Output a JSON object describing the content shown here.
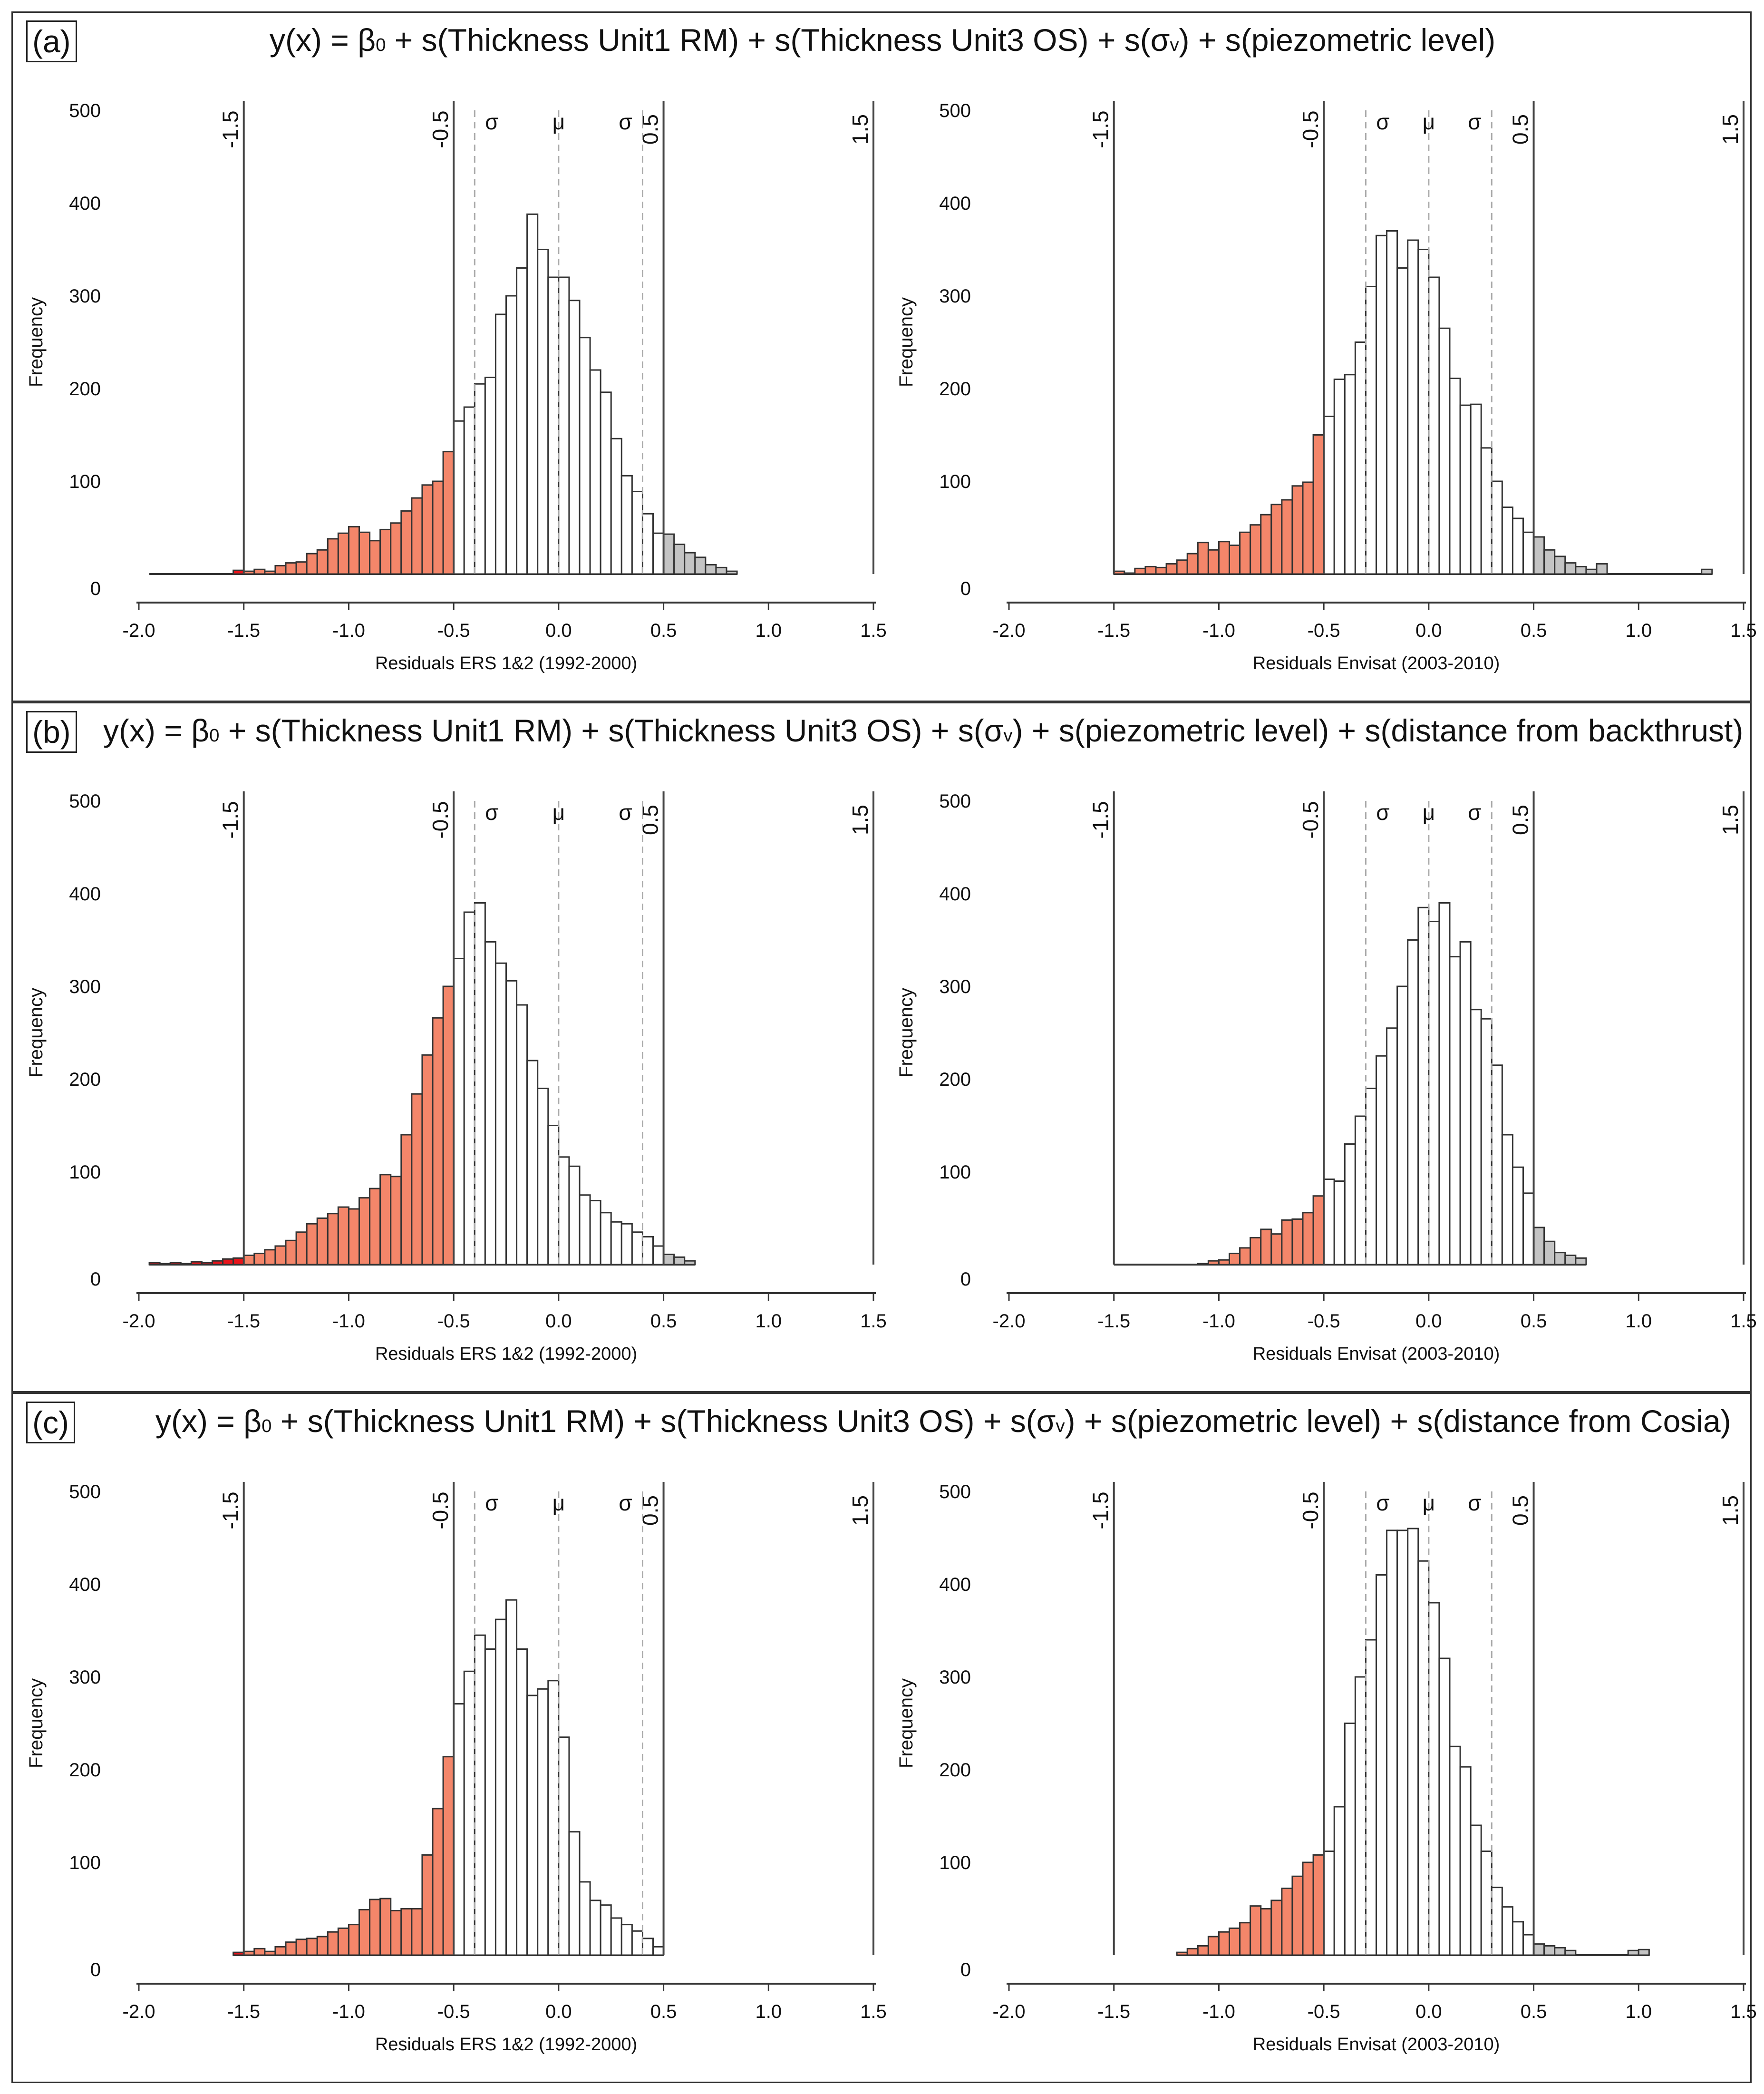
{
  "common": {
    "ylabel": "Frequency",
    "y_ticks": [
      0,
      100,
      200,
      300,
      400,
      500
    ],
    "x_ticks": [
      -2.0,
      -1.5,
      -1.0,
      -0.5,
      0.0,
      0.5,
      1.0,
      1.5
    ],
    "x_tick_labels": [
      "-2.0",
      "-1.5",
      "-1.0",
      "-0.5",
      "0.0",
      "0.5",
      "1.0",
      "1.5"
    ],
    "bin_width": 0.05,
    "sigma_symbol": "σ",
    "mu_symbol": "μ",
    "colors": {
      "red": "#e8141b",
      "orange": "#f4866a",
      "gray": "#c4c4c4",
      "white": "#ffffff",
      "line": "#444444",
      "dashed": "#aaaaaa"
    }
  },
  "panels": [
    {
      "label": "(a)",
      "title_parts": [
        "y(x) = β",
        "0",
        " + s(Thickness Unit1 RM) + s(Thickness Unit3 OS) + s(σ",
        "v",
        ") + s(piezometric level)"
      ]
    },
    {
      "label": "(b)",
      "title_parts": [
        "y(x) = β",
        "0",
        " + s(Thickness Unit1 RM) + s(Thickness Unit3 OS) + s(σ",
        "v",
        ") + s(piezometric level) + s(distance from backthrust)"
      ]
    },
    {
      "label": "(c)",
      "title_parts": [
        "y(x) = β",
        "0",
        " + s(Thickness Unit1 RM) + s(Thickness Unit3 OS) + s(σ",
        "v",
        ") + s(piezometric level) + s(distance from Cosia)"
      ]
    }
  ],
  "chart_data": [
    {
      "id": "a-ers",
      "type": "histogram",
      "xlabel": "Residuals ERS 1&2 (1992-2000)",
      "ylabel": "Frequency",
      "xlim": [
        -2.0,
        1.5
      ],
      "ylim": [
        0,
        500
      ],
      "bin_start": -1.95,
      "bin_width": 0.05,
      "mu": 0.0,
      "sigma": 0.4,
      "vlines": [
        {
          "x": -1.5,
          "label": "-1.5"
        },
        {
          "x": -0.5,
          "label": "-0.5"
        },
        {
          "x": 0.5,
          "label": "0.5"
        },
        {
          "x": 1.5,
          "label": "1.5"
        }
      ],
      "counts": [
        0,
        0,
        0,
        0,
        0,
        0,
        0,
        0,
        4,
        3,
        5,
        3,
        9,
        12,
        13,
        22,
        26,
        38,
        44,
        51,
        45,
        36,
        48,
        55,
        68,
        82,
        96,
        100,
        132,
        165,
        180,
        205,
        212,
        280,
        300,
        330,
        388,
        350,
        320,
        320,
        295,
        255,
        220,
        196,
        146,
        106,
        89,
        65,
        44,
        43,
        32,
        23,
        18,
        10,
        7,
        3
      ]
    },
    {
      "id": "a-envisat",
      "type": "histogram",
      "xlabel": "Residuals Envisat (2003-2010)",
      "ylabel": "Frequency",
      "xlim": [
        -2.0,
        1.5
      ],
      "ylim": [
        0,
        500
      ],
      "bin_start": -1.5,
      "bin_width": 0.05,
      "mu": 0.0,
      "sigma": 0.3,
      "vlines": [
        {
          "x": -1.5,
          "label": "-1.5"
        },
        {
          "x": -0.5,
          "label": "-0.5"
        },
        {
          "x": 0.5,
          "label": "0.5"
        },
        {
          "x": 1.5,
          "label": "1.5"
        }
      ],
      "counts": [
        3,
        1,
        6,
        8,
        7,
        11,
        15,
        22,
        34,
        26,
        35,
        31,
        45,
        53,
        64,
        75,
        80,
        95,
        99,
        150,
        170,
        210,
        215,
        250,
        310,
        365,
        370,
        330,
        360,
        350,
        320,
        265,
        211,
        182,
        183,
        136,
        100,
        72,
        60,
        45,
        40,
        26,
        19,
        12,
        8,
        5,
        11,
        0,
        0,
        0,
        0,
        0,
        0,
        0,
        0,
        0,
        5
      ]
    },
    {
      "id": "b-ers",
      "type": "histogram",
      "xlabel": "Residuals ERS 1&2 (1992-2000)",
      "ylabel": "Frequency",
      "xlim": [
        -2.0,
        1.5
      ],
      "ylim": [
        0,
        500
      ],
      "bin_start": -1.95,
      "bin_width": 0.05,
      "mu": 0.0,
      "sigma": 0.4,
      "vlines": [
        {
          "x": -1.5,
          "label": "-1.5"
        },
        {
          "x": -0.5,
          "label": "-0.5"
        },
        {
          "x": 0.5,
          "label": "0.5"
        },
        {
          "x": 1.5,
          "label": "1.5"
        }
      ],
      "counts": [
        2,
        1,
        2,
        1,
        3,
        2,
        4,
        6,
        7,
        10,
        12,
        16,
        20,
        26,
        35,
        44,
        50,
        55,
        62,
        60,
        72,
        82,
        97,
        95,
        140,
        184,
        226,
        266,
        300,
        330,
        380,
        390,
        348,
        325,
        306,
        280,
        220,
        190,
        150,
        116,
        106,
        75,
        69,
        56,
        46,
        44,
        35,
        30,
        20,
        11,
        8,
        4
      ]
    },
    {
      "id": "b-envisat",
      "type": "histogram",
      "xlabel": "Residuals Envisat (2003-2010)",
      "ylabel": "Frequency",
      "xlim": [
        -2.0,
        1.5
      ],
      "ylim": [
        0,
        500
      ],
      "bin_start": -1.5,
      "bin_width": 0.05,
      "mu": 0.0,
      "sigma": 0.3,
      "vlines": [
        {
          "x": -1.5,
          "label": "-1.5"
        },
        {
          "x": -0.5,
          "label": "-0.5"
        },
        {
          "x": 0.5,
          "label": "0.5"
        },
        {
          "x": 1.5,
          "label": "1.5"
        }
      ],
      "counts": [
        0,
        0,
        0,
        0,
        0,
        0,
        0,
        0,
        1,
        4,
        5,
        12,
        18,
        29,
        38,
        33,
        48,
        49,
        56,
        74,
        92,
        90,
        130,
        160,
        190,
        225,
        255,
        300,
        350,
        385,
        370,
        390,
        332,
        348,
        275,
        265,
        215,
        140,
        105,
        77,
        40,
        25,
        13,
        10,
        7
      ]
    },
    {
      "id": "c-ers",
      "type": "histogram",
      "xlabel": "Residuals ERS 1&2 (1992-2000)",
      "ylabel": "Frequency",
      "xlim": [
        -2.0,
        1.5
      ],
      "ylim": [
        0,
        500
      ],
      "bin_start": -1.55,
      "bin_width": 0.05,
      "mu": 0.0,
      "sigma": 0.4,
      "vlines": [
        {
          "x": -1.5,
          "label": "-1.5"
        },
        {
          "x": -0.5,
          "label": "-0.5"
        },
        {
          "x": 0.5,
          "label": "0.5"
        },
        {
          "x": 1.5,
          "label": "1.5"
        }
      ],
      "counts": [
        3,
        4,
        7,
        4,
        9,
        14,
        17,
        18,
        20,
        25,
        29,
        33,
        49,
        60,
        61,
        48,
        50,
        50,
        108,
        158,
        214,
        271,
        306,
        345,
        330,
        362,
        383,
        330,
        280,
        287,
        296,
        235,
        133,
        79,
        59,
        54,
        40,
        33,
        26,
        18,
        9
      ]
    },
    {
      "id": "c-envisat",
      "type": "histogram",
      "xlabel": "Residuals Envisat (2003-2010)",
      "ylabel": "Frequency",
      "xlim": [
        -2.0,
        1.5
      ],
      "ylim": [
        0,
        500
      ],
      "bin_start": -1.2,
      "bin_width": 0.05,
      "mu": 0.0,
      "sigma": 0.3,
      "vlines": [
        {
          "x": -1.5,
          "label": "-1.5"
        },
        {
          "x": -0.5,
          "label": "-0.5"
        },
        {
          "x": 0.5,
          "label": "0.5"
        },
        {
          "x": 1.5,
          "label": "1.5"
        }
      ],
      "counts": [
        3,
        7,
        10,
        20,
        25,
        29,
        35,
        53,
        50,
        59,
        72,
        85,
        100,
        108,
        112,
        160,
        250,
        300,
        340,
        410,
        458,
        458,
        460,
        425,
        380,
        320,
        225,
        203,
        140,
        112,
        73,
        52,
        36,
        22,
        12,
        10,
        8,
        5,
        0,
        0,
        0,
        0,
        0,
        5,
        6
      ]
    }
  ]
}
